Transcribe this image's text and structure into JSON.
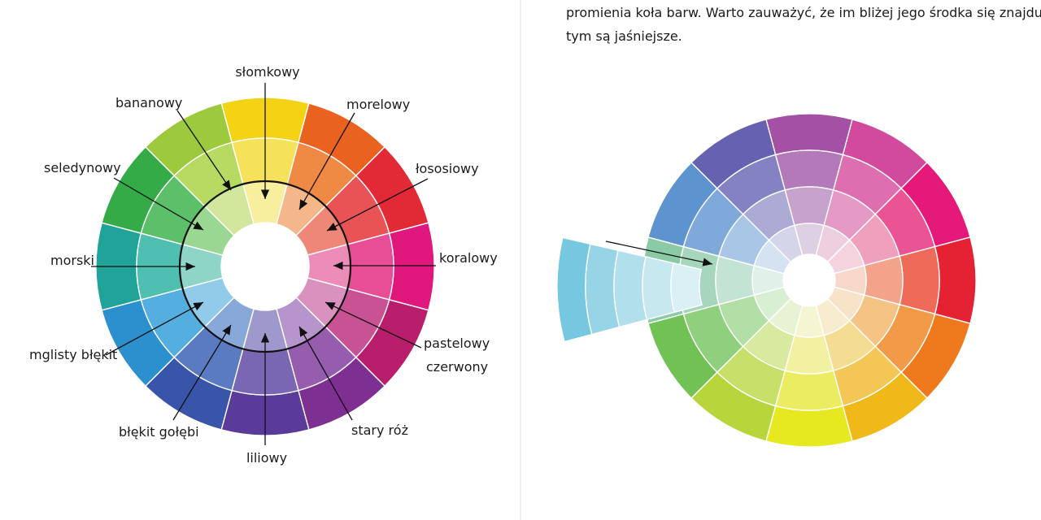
{
  "left_wheel": {
    "labels": {
      "slomkowy": "słomkowy",
      "morelowy": "morelowy",
      "lososiowy": "łososiowy",
      "koralowy": "koralowy",
      "pastelowy": "pastelowy",
      "czerwony": "czerwony",
      "stary_roz": "stary róż",
      "liliowy": "liliowy",
      "blekit_golebi": "błękit gołębi",
      "mglisty_blekit": "mglisty błękit",
      "morski": "morski",
      "seledynowy": "seledynowy",
      "bananowy": "bananowy"
    },
    "colors": [
      "#f4d315",
      "#e96220",
      "#e22a36",
      "#e0177c",
      "#b91e6d",
      "#7e2f92",
      "#5a3b9a",
      "#3955aa",
      "#2c8fce",
      "#22a39a",
      "#35ab47",
      "#9cca3c"
    ],
    "mid_colors": [
      "#f6e25a",
      "#ef8a45",
      "#e95356",
      "#e84e96",
      "#c95294",
      "#965cad",
      "#7a67b4",
      "#5a7bc2",
      "#54aee0",
      "#4fbfb1",
      "#5cc06a",
      "#b7da63"
    ],
    "inner_colors": [
      "#f7ee9e",
      "#f4b78a",
      "#ef8778",
      "#ee8cb9",
      "#d992be",
      "#b595cb",
      "#9f98cd",
      "#87a8d9",
      "#91cbe9",
      "#8ed4c7",
      "#99d793",
      "#d2e79c"
    ]
  },
  "right_text": {
    "line1": "promienia koła barw. Warto zauważyć, że im bliżej jego środka się znajdują,",
    "line2": "tym są jaśniejsze."
  },
  "right_wheel": {
    "colors": [
      "#a350a5",
      "#d14a9e",
      "#e4197a",
      "#e42233",
      "#ef7a1e",
      "#f1b819",
      "#e6e91f",
      "#b6d63b",
      "#72c155",
      "#8acba5",
      "#5d93cf",
      "#6661b0"
    ],
    "mid_colors": [
      "#b379b8",
      "#dd6fb0",
      "#ea5495",
      "#ee6b5a",
      "#f29a48",
      "#f3c655",
      "#ecec63",
      "#c7e06a",
      "#8fcf7d",
      "#a6d7bc",
      "#7ea9da",
      "#8582c3"
    ],
    "light_colors": [
      "#c6a2cc",
      "#e599c6",
      "#efa0bd",
      "#f4a38b",
      "#f5c485",
      "#f5dc93",
      "#f1f1a1",
      "#d7eaa0",
      "#b2dfa6",
      "#c3e4d3",
      "#a9c6e6",
      "#ababd6"
    ],
    "pale_colors": [
      "#ddd0e2",
      "#eecfe0",
      "#f4d3de",
      "#f7d8cb",
      "#f7e4c8",
      "#f7ecd0",
      "#f5f5d4",
      "#e8f3d3",
      "#d8efd4",
      "#dff1e8",
      "#d4e2f2",
      "#d5d5ea"
    ],
    "pulled_colors": [
      "#76c8e0",
      "#96d4e6",
      "#b2dfec",
      "#c8e8f0",
      "#dbf0f4"
    ]
  }
}
